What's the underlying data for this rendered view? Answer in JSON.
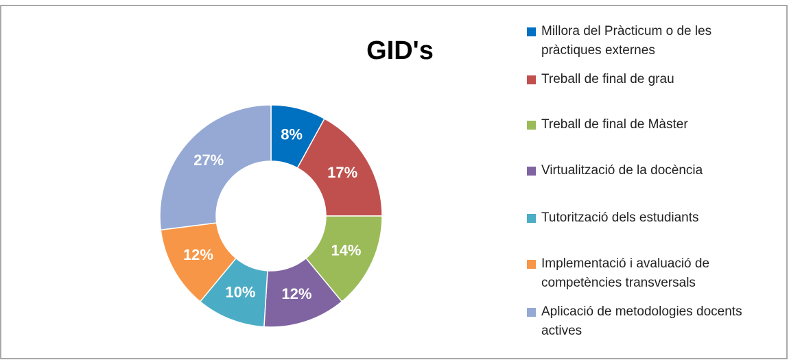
{
  "chart_data": {
    "type": "pie",
    "title": "GID's",
    "categories": [
      "Millora del Pràcticum o de les pràctiques externes",
      "Treball de final de grau",
      "Treball de final de Màster",
      "Virtualització de la docència",
      "Tutorització dels estudiants",
      "Implementació i avaluació de competències transversals",
      "Aplicació de metodologies docents actives"
    ],
    "values": [
      8,
      17,
      14,
      12,
      10,
      12,
      27
    ],
    "value_labels": [
      "8%",
      "17%",
      "14%",
      "12%",
      "10%",
      "12%",
      "27%"
    ],
    "colors": [
      "#0070C0",
      "#C0504D",
      "#9BBB59",
      "#8064A2",
      "#4BACC6",
      "#F79646",
      "#95A9D4"
    ],
    "legend": "right"
  }
}
